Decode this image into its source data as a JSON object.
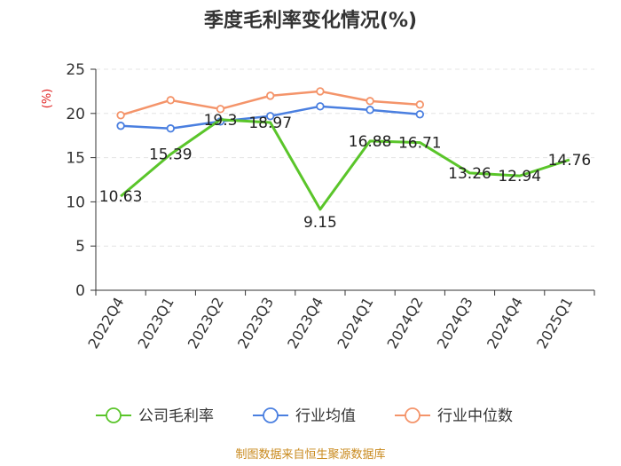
{
  "chart_data": {
    "type": "line",
    "title": "季度毛利率变化情况(%)",
    "ylabel": "(%)",
    "ylim": [
      0,
      25
    ],
    "yticks": [
      0,
      5,
      10,
      15,
      20,
      25
    ],
    "categories": [
      "2022Q4",
      "2023Q1",
      "2023Q2",
      "2023Q3",
      "2023Q4",
      "2024Q1",
      "2024Q2",
      "2024Q3",
      "2024Q4",
      "2025Q1"
    ],
    "series": [
      {
        "name": "公司毛利率",
        "color": "#5ac52a",
        "values": [
          10.63,
          15.39,
          19.3,
          18.97,
          9.15,
          16.88,
          16.71,
          13.26,
          12.94,
          14.76
        ],
        "labels": [
          "10.63",
          "15.39",
          "19.3",
          "18.97",
          "9.15",
          "16.88",
          "16.71",
          "13.26",
          "12.94",
          "14.76"
        ]
      },
      {
        "name": "行业均值",
        "color": "#4a7fe0",
        "values": [
          18.6,
          18.3,
          19.1,
          19.7,
          20.8,
          20.4,
          19.9,
          null,
          null,
          null
        ]
      },
      {
        "name": "行业中位数",
        "color": "#f4946a",
        "values": [
          19.8,
          21.5,
          20.5,
          22.0,
          22.5,
          21.4,
          21.0,
          null,
          null,
          null
        ]
      }
    ],
    "grid": true,
    "legend_position": "bottom"
  },
  "footer": {
    "source": "制图数据来自恒生聚源数据库"
  }
}
